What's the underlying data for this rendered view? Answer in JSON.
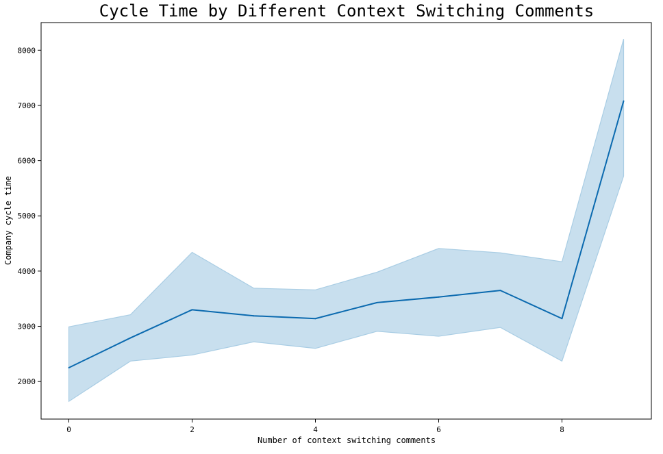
{
  "chart_data": {
    "type": "line",
    "title": "Cycle Time by Different Context Switching Comments",
    "xlabel": "Number of context switching comments",
    "ylabel": "Company cycle time",
    "xlim": [
      -0.45,
      9.45
    ],
    "ylim": [
      1320,
      8500
    ],
    "xticks": [
      0,
      2,
      4,
      6,
      8
    ],
    "yticks": [
      2000,
      3000,
      4000,
      5000,
      6000,
      7000,
      8000
    ],
    "grid": false,
    "series": [
      {
        "color": "#0b6aaf",
        "band_color": "#c8dfee",
        "band_edge_color": "#a9cde4",
        "x": [
          0,
          1,
          2,
          3,
          4,
          5,
          6,
          7,
          8,
          9
        ],
        "y": [
          2250,
          2790,
          3300,
          3190,
          3140,
          3430,
          3530,
          3650,
          3140,
          7080
        ],
        "lower": [
          1640,
          2370,
          2480,
          2720,
          2600,
          2910,
          2820,
          2980,
          2370,
          5720
        ],
        "upper": [
          2990,
          3210,
          4340,
          3690,
          3660,
          3980,
          4410,
          4330,
          4170,
          8200
        ]
      }
    ]
  }
}
